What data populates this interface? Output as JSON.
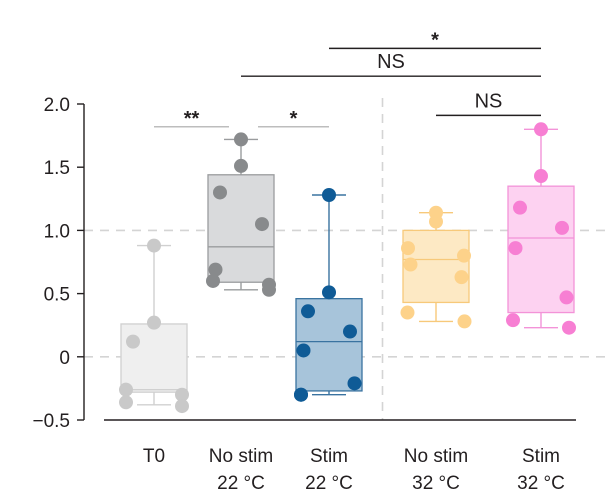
{
  "chart_data": {
    "type": "box",
    "title": "",
    "xlabel": "",
    "ylabel": "",
    "ylim": [
      -0.5,
      2.0
    ],
    "yticks": [
      "2.0",
      "1.5",
      "1.0",
      "0.5",
      "0",
      "−0.5"
    ],
    "ytick_values": [
      2.0,
      1.5,
      1.0,
      0.5,
      0,
      -0.5
    ],
    "reference_lines": [
      0,
      1.0
    ],
    "groups": [
      {
        "name_line1": "T0",
        "name_line2": "",
        "color": "#c9c9c9",
        "fill": "#efefef",
        "edge": "#d0d0d0",
        "box": {
          "q1": -0.28,
          "median": -0.26,
          "q3": 0.26,
          "whisker_low": -0.38,
          "whisker_high": 0.88
        },
        "points": [
          0.88,
          0.27,
          0.12,
          -0.26,
          -0.3,
          -0.36,
          -0.39
        ]
      },
      {
        "name_line1": "No stim",
        "name_line2": "22 °C",
        "color": "#888a8c",
        "fill": "#d9dadc",
        "edge": "#9a9c9e",
        "box": {
          "q1": 0.59,
          "median": 0.87,
          "q3": 1.44,
          "whisker_low": 0.53,
          "whisker_high": 1.72
        },
        "points": [
          1.72,
          1.51,
          1.3,
          1.05,
          0.69,
          0.6,
          0.57,
          0.53
        ]
      },
      {
        "name_line1": "Stim",
        "name_line2": "22 °C",
        "color": "#0f5b96",
        "fill": "#a7c4da",
        "edge": "#3a73a0",
        "box": {
          "q1": -0.27,
          "median": 0.12,
          "q3": 0.46,
          "whisker_low": -0.3,
          "whisker_high": 1.28
        },
        "points": [
          1.28,
          0.51,
          0.36,
          0.2,
          0.05,
          -0.21,
          -0.3,
          -0.3
        ]
      },
      {
        "name_line1": "No stim",
        "name_line2": "32 °C",
        "color": "#fdd28a",
        "fill": "#fde9c4",
        "edge": "#f7c97a",
        "box": {
          "q1": 0.43,
          "median": 0.77,
          "q3": 1.0,
          "whisker_low": 0.28,
          "whisker_high": 1.14
        },
        "points": [
          1.14,
          1.07,
          0.86,
          0.8,
          0.73,
          0.63,
          0.35,
          0.28
        ]
      },
      {
        "name_line1": "Stim",
        "name_line2": "32 °C",
        "color": "#f77fd3",
        "fill": "#fdd2f1",
        "edge": "#f393d8",
        "box": {
          "q1": 0.35,
          "median": 0.94,
          "q3": 1.35,
          "whisker_low": 0.23,
          "whisker_high": 1.8
        },
        "points": [
          1.8,
          1.43,
          1.18,
          1.02,
          0.86,
          0.47,
          0.29,
          0.23
        ]
      }
    ],
    "significance": [
      {
        "from": 0,
        "to": 1,
        "label": "**",
        "color": "#bdbdbd",
        "level": 1.82
      },
      {
        "from": 1,
        "to": 2,
        "label": "*",
        "color": "#bdbdbd",
        "level": 1.82
      },
      {
        "from": 1,
        "to": 4,
        "label": "NS",
        "color": "#231f20",
        "level": 2.22
      },
      {
        "from": 2,
        "to": 4,
        "label": "*",
        "color": "#231f20",
        "level": 2.44
      },
      {
        "from": 3,
        "to": 4,
        "label": "NS",
        "color": "#231f20",
        "level": 1.91
      }
    ],
    "colors": {
      "axis": "#231f20",
      "reference": "#d4d4d4",
      "divider": "#d4d4d4"
    }
  }
}
